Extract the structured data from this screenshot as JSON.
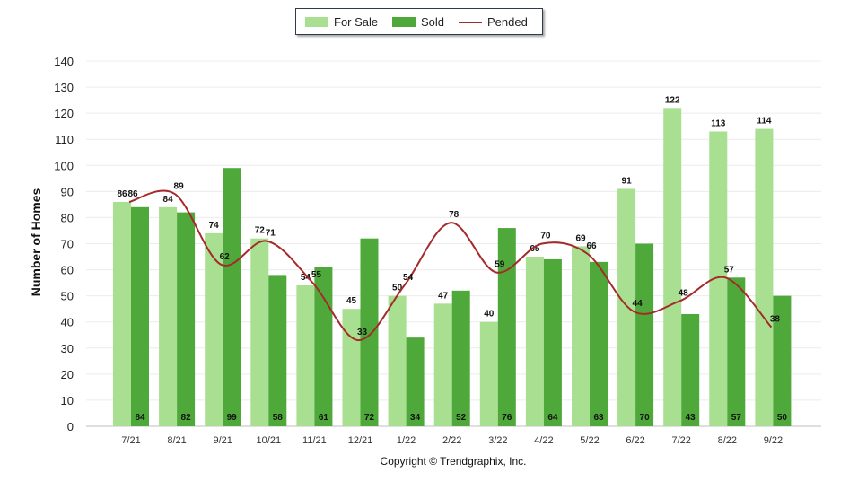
{
  "chart_data": {
    "type": "bar",
    "ylabel": "Number of Homes",
    "xlabel": "",
    "ylim": [
      0,
      140
    ],
    "ytick_step": 10,
    "categories": [
      "7/21",
      "8/21",
      "9/21",
      "10/21",
      "11/21",
      "12/21",
      "1/22",
      "2/22",
      "3/22",
      "4/22",
      "5/22",
      "6/22",
      "7/22",
      "8/22",
      "9/22"
    ],
    "series": [
      {
        "name": "For Sale",
        "kind": "bar",
        "color": "#a9df90",
        "values": [
          86,
          84,
          74,
          72,
          54,
          45,
          50,
          47,
          40,
          65,
          69,
          91,
          122,
          113,
          114
        ]
      },
      {
        "name": "Sold",
        "kind": "bar",
        "color": "#4ea93a",
        "values": [
          84,
          82,
          99,
          58,
          61,
          72,
          34,
          52,
          76,
          64,
          63,
          70,
          43,
          57,
          50
        ]
      },
      {
        "name": "Pended",
        "kind": "line",
        "color": "#a52a2a",
        "values": [
          86,
          89,
          62,
          71,
          55,
          33,
          54,
          78,
          59,
          70,
          66,
          44,
          48,
          57,
          38
        ]
      }
    ],
    "legend_position": "top-center",
    "grid": true
  },
  "footer": {
    "copyright": "Copyright © Trendgraphix, Inc."
  }
}
